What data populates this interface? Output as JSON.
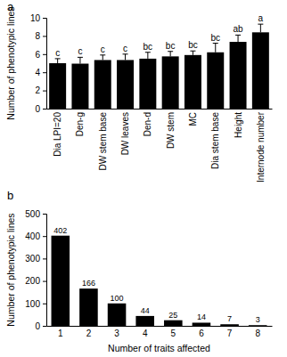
{
  "chart_data": [
    {
      "type": "bar",
      "title": "a",
      "y_label": "Number of phenotypic lines",
      "categories": [
        "Dia LPI=20",
        "Den-g",
        "DW stem base",
        "DW leaves",
        "Den-d",
        "DW stem",
        "MC",
        "Dia stem base",
        "Height",
        "Internode number"
      ],
      "values": [
        5.0,
        4.95,
        5.35,
        5.35,
        5.5,
        5.75,
        5.9,
        6.2,
        7.35,
        8.4
      ],
      "errors": [
        0.5,
        0.7,
        0.55,
        0.65,
        0.7,
        0.55,
        0.45,
        1.0,
        0.75,
        0.9
      ],
      "annotations": [
        "c",
        "c",
        "c",
        "c",
        "bc",
        "bc",
        "bc",
        "bc",
        "ab",
        "a"
      ],
      "color": "#000000",
      "ylim": [
        0,
        10
      ],
      "yticks": [
        0,
        2,
        4,
        6,
        8,
        10
      ]
    },
    {
      "type": "bar",
      "title": "b",
      "x_label": "Number of traits affected",
      "y_label": "Number of phenotypic lines",
      "categories": [
        "1",
        "2",
        "3",
        "4",
        "5",
        "6",
        "7",
        "8"
      ],
      "values": [
        402,
        166,
        100,
        44,
        25,
        14,
        7,
        3
      ],
      "color": "#000000",
      "data_labels": true,
      "ylim": [
        0,
        500
      ],
      "yticks": [
        0,
        100,
        200,
        300,
        400,
        500
      ]
    }
  ]
}
